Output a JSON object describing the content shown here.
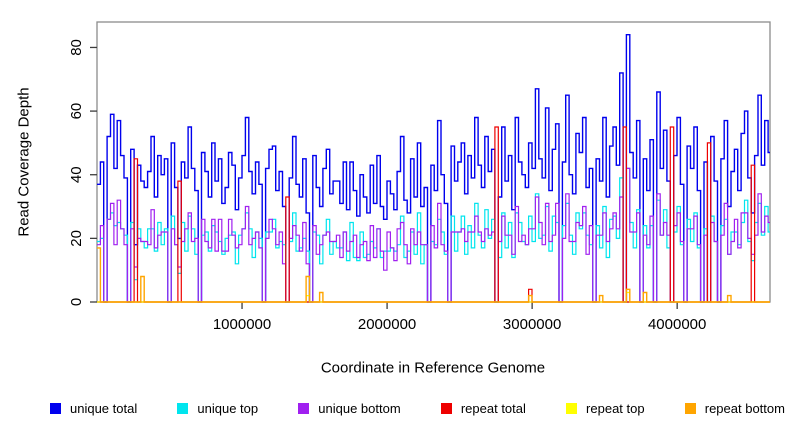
{
  "figure": {
    "background": "#ffffff"
  },
  "chart_data": {
    "type": "line",
    "subtype": "step-after",
    "title": "",
    "xlabel": "Coordinate in Reference Genome",
    "ylabel": "Read Coverage Depth",
    "xlim": [
      0,
      4640000
    ],
    "ylim": [
      0,
      88
    ],
    "xticks": [
      1000000,
      2000000,
      3000000,
      4000000
    ],
    "xtick_labels": [
      "1000000",
      "2000000",
      "3000000",
      "4000000"
    ],
    "yticks": [
      0,
      20,
      40,
      60,
      80
    ],
    "ytick_labels": [
      "0",
      "20",
      "40",
      "60",
      "80"
    ],
    "grid": false,
    "legend_position": "bottom",
    "n_points": 200,
    "x_step": 23250,
    "axis_color": "#3c3c3c",
    "box_color": "#8c8c8c",
    "series": [
      {
        "name": "unique total",
        "color": "#0000EE",
        "line_width": 1.4,
        "values": [
          37,
          44,
          0,
          52,
          59,
          42,
          57,
          46,
          39,
          0,
          48,
          18,
          43,
          38,
          36,
          41,
          52,
          33,
          46,
          40,
          45,
          0,
          50,
          36,
          20,
          44,
          39,
          55,
          42,
          35,
          0,
          47,
          41,
          33,
          50,
          38,
          45,
          31,
          36,
          47,
          43,
          29,
          39,
          46,
          58,
          41,
          34,
          44,
          37,
          0,
          42,
          48,
          49,
          35,
          41,
          30,
          0,
          39,
          52,
          37,
          33,
          45,
          28,
          0,
          46,
          36,
          30,
          42,
          48,
          34,
          38,
          38,
          31,
          44,
          29,
          44,
          35,
          27,
          40,
          33,
          28,
          43,
          31,
          46,
          30,
          26,
          38,
          34,
          29,
          41,
          52,
          32,
          28,
          45,
          33,
          50,
          30,
          36,
          0,
          43,
          35,
          57,
          40,
          31,
          0,
          49,
          38,
          44,
          50,
          34,
          46,
          39,
          58,
          43,
          36,
          52,
          41,
          48,
          0,
          33,
          55,
          38,
          46,
          29,
          58,
          44,
          40,
          36,
          50,
          42,
          67,
          45,
          39,
          61,
          35,
          48,
          56,
          0,
          44,
          65,
          40,
          34,
          53,
          47,
          58,
          36,
          42,
          0,
          45,
          38,
          58,
          33,
          49,
          55,
          43,
          72,
          0,
          84,
          47,
          39,
          57,
          0,
          45,
          35,
          51,
          0,
          66,
          42,
          54,
          38,
          0,
          46,
          58,
          37,
          0,
          49,
          42,
          55,
          35,
          0,
          44,
          0,
          52,
          38,
          0,
          45,
          57,
          30,
          41,
          48,
          35,
          53,
          60,
          39,
          28,
          46,
          65,
          43,
          57,
          47
        ]
      },
      {
        "name": "unique top",
        "color": "#00E5EE",
        "line_width": 1.2,
        "values": [
          19,
          20,
          0,
          26,
          28,
          24,
          25,
          23,
          21,
          0,
          25,
          7,
          23,
          19,
          17,
          23,
          23,
          16,
          25,
          18,
          23,
          0,
          27,
          18,
          9,
          25,
          16,
          27,
          23,
          15,
          0,
          21,
          22,
          16,
          24,
          22,
          19,
          15,
          20,
          21,
          22,
          12,
          21,
          23,
          28,
          23,
          14,
          22,
          20,
          0,
          22,
          22,
          26,
          17,
          19,
          18,
          0,
          19,
          28,
          16,
          17,
          20,
          16,
          0,
          22,
          21,
          12,
          21,
          26,
          15,
          19,
          17,
          17,
          22,
          13,
          25,
          14,
          13,
          22,
          14,
          15,
          19,
          17,
          23,
          14,
          16,
          16,
          17,
          16,
          18,
          27,
          14,
          16,
          22,
          15,
          28,
          12,
          18,
          0,
          19,
          18,
          26,
          22,
          15,
          0,
          27,
          16,
          22,
          27,
          15,
          24,
          17,
          31,
          21,
          17,
          29,
          20,
          26,
          0,
          14,
          28,
          17,
          25,
          14,
          28,
          25,
          19,
          18,
          27,
          19,
          34,
          20,
          21,
          30,
          16,
          27,
          25,
          0,
          24,
          31,
          21,
          15,
          28,
          23,
          28,
          21,
          18,
          0,
          24,
          17,
          30,
          14,
          26,
          27,
          20,
          39,
          0,
          42,
          25,
          17,
          29,
          0,
          24,
          17,
          24,
          0,
          32,
          21,
          29,
          17,
          0,
          22,
          30,
          18,
          0,
          26,
          19,
          28,
          17,
          0,
          23,
          0,
          27,
          19,
          0,
          24,
          26,
          15,
          22,
          22,
          18,
          25,
          32,
          19,
          13,
          25,
          31,
          21,
          30,
          22
        ]
      },
      {
        "name": "unique bottom",
        "color": "#A020F0",
        "line_width": 1.2,
        "values": [
          18,
          24,
          0,
          26,
          31,
          18,
          32,
          23,
          18,
          0,
          23,
          11,
          20,
          19,
          19,
          18,
          29,
          17,
          21,
          22,
          22,
          0,
          23,
          18,
          11,
          19,
          23,
          28,
          19,
          20,
          0,
          26,
          19,
          17,
          26,
          16,
          26,
          16,
          16,
          26,
          21,
          17,
          18,
          23,
          30,
          18,
          20,
          22,
          17,
          0,
          20,
          26,
          23,
          18,
          22,
          12,
          0,
          20,
          24,
          21,
          16,
          25,
          12,
          0,
          24,
          15,
          18,
          21,
          22,
          19,
          19,
          21,
          14,
          22,
          16,
          19,
          21,
          14,
          18,
          19,
          13,
          24,
          14,
          23,
          16,
          10,
          22,
          17,
          13,
          23,
          25,
          18,
          12,
          23,
          18,
          22,
          18,
          18,
          0,
          24,
          17,
          31,
          18,
          16,
          0,
          22,
          22,
          22,
          23,
          19,
          22,
          22,
          27,
          22,
          19,
          23,
          21,
          22,
          0,
          19,
          27,
          21,
          21,
          15,
          30,
          19,
          21,
          18,
          23,
          23,
          33,
          25,
          18,
          31,
          19,
          21,
          31,
          0,
          20,
          34,
          19,
          19,
          25,
          24,
          30,
          15,
          24,
          0,
          21,
          21,
          28,
          19,
          23,
          28,
          23,
          33,
          0,
          42,
          22,
          22,
          28,
          0,
          21,
          18,
          27,
          0,
          34,
          21,
          25,
          21,
          0,
          24,
          28,
          19,
          0,
          23,
          23,
          27,
          18,
          0,
          21,
          0,
          25,
          19,
          0,
          21,
          31,
          15,
          19,
          26,
          17,
          28,
          28,
          20,
          15,
          21,
          34,
          22,
          27,
          25
        ]
      },
      {
        "name": "repeat total",
        "color": "#EE0000",
        "line_width": 1.2,
        "base": 0,
        "spikes": {
          "11": 45,
          "24": 38,
          "56": 33,
          "118": 55,
          "128": 4,
          "156": 55,
          "170": 55,
          "181": 50,
          "194": 43
        }
      },
      {
        "name": "repeat top",
        "color": "#FFFF00",
        "line_width": 1.2,
        "base": 0,
        "spikes": {
          "62": 2,
          "157": 3
        }
      },
      {
        "name": "repeat bottom",
        "color": "#FFA500",
        "line_width": 1.4,
        "base": 0,
        "spikes": {
          "0": 17,
          "13": 8,
          "62": 8,
          "66": 3,
          "128": 2,
          "149": 2,
          "157": 4,
          "162": 3,
          "187": 2
        }
      }
    ]
  }
}
